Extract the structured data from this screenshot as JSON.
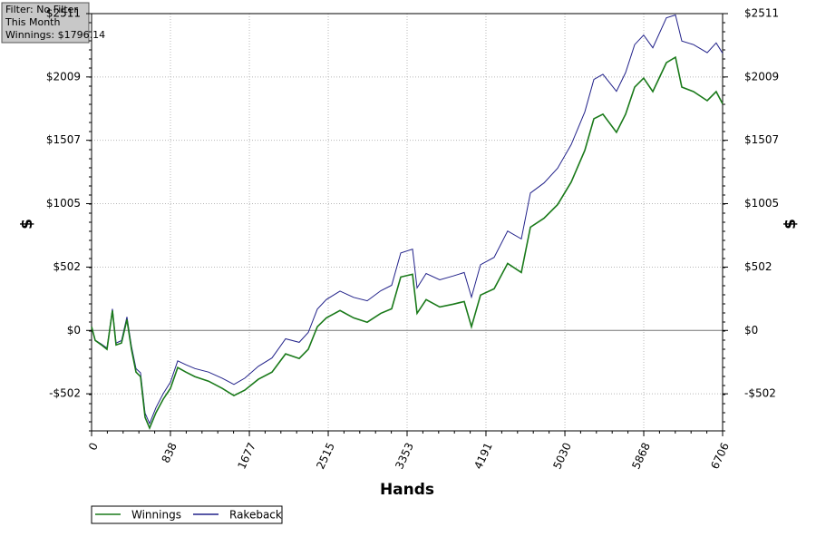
{
  "chart_data": {
    "type": "line",
    "annotations": [
      "Filter: No Filter",
      "This Month",
      "Winnings: $1796.14"
    ],
    "x_label": "Hands",
    "y_label": "$",
    "y2_label": "$",
    "x": [
      0,
      39,
      106,
      164,
      222,
      260,
      318,
      376,
      424,
      472,
      520,
      568,
      617,
      684,
      761,
      838,
      915,
      1002,
      1098,
      1243,
      1387,
      1513,
      1628,
      1773,
      1917,
      2062,
      2206,
      2303,
      2399,
      2495,
      2640,
      2785,
      2929,
      3074,
      3189,
      3286,
      3411,
      3459,
      3555,
      3700,
      3844,
      3960,
      4037,
      4133,
      4278,
      4422,
      4567,
      4663,
      4808,
      4952,
      5097,
      5241,
      5338,
      5434,
      5578,
      5675,
      5771,
      5867,
      5964,
      6109,
      6205,
      6272,
      6397,
      6542,
      6638,
      6706
    ],
    "series": [
      {
        "name": "Winnings",
        "color": "#1a7a1a",
        "values": [
          29,
          -79,
          -115,
          -150,
          158,
          -115,
          -100,
          86,
          -150,
          -330,
          -366,
          -688,
          -774,
          -652,
          -545,
          -459,
          -294,
          -330,
          -366,
          -402,
          -459,
          -516,
          -473,
          -387,
          -330,
          -186,
          -222,
          -150,
          29,
          100,
          158,
          100,
          65,
          136,
          172,
          423,
          445,
          136,
          244,
          186,
          208,
          229,
          29,
          280,
          330,
          531,
          459,
          818,
          889,
          997,
          1176,
          1427,
          1678,
          1714,
          1570,
          1714,
          1929,
          2000,
          1893,
          2122,
          2165,
          1929,
          1893,
          1821,
          1893,
          1796
        ]
      },
      {
        "name": "Rakeback",
        "color": "#22228a",
        "values": [
          29,
          -77,
          -109,
          -140,
          171,
          -100,
          -81,
          108,
          -125,
          -303,
          -336,
          -655,
          -738,
          -612,
          -501,
          -410,
          -241,
          -272,
          -302,
          -330,
          -378,
          -428,
          -378,
          -284,
          -218,
          -66,
          -94,
          -16,
          169,
          245,
          312,
          262,
          235,
          315,
          358,
          614,
          644,
          337,
          451,
          401,
          432,
          459,
          264,
          521,
          579,
          788,
          725,
          1089,
          1169,
          1285,
          1473,
          1732,
          1989,
          2030,
          1895,
          2044,
          2265,
          2341,
          2240,
          2477,
          2500,
          2294,
          2265,
          2201,
          2279,
          2197
        ]
      }
    ],
    "xlim": [
      0,
      6706
    ],
    "xticks": [
      0,
      838,
      1677,
      2515,
      3353,
      4191,
      5030,
      5868,
      6706
    ],
    "ylim": [
      -796,
      2511
    ],
    "yticks": [
      {
        "value": -502,
        "label": "-$502"
      },
      {
        "value": 0,
        "label": "$0"
      },
      {
        "value": 502,
        "label": "$502"
      },
      {
        "value": 1005,
        "label": "$1005"
      },
      {
        "value": 1507,
        "label": "$1507"
      },
      {
        "value": 2009,
        "label": "$2009"
      },
      {
        "value": 2511,
        "label": "$2511"
      }
    ],
    "y2lim": [
      -796,
      2511
    ],
    "y2ticks": [
      {
        "value": -502,
        "label": "-$502"
      },
      {
        "value": 0,
        "label": "$0"
      },
      {
        "value": 502,
        "label": "$502"
      },
      {
        "value": 1005,
        "label": "$1005"
      },
      {
        "value": 1507,
        "label": "$1507"
      },
      {
        "value": 2009,
        "label": "$2009"
      },
      {
        "value": 2511,
        "label": "$2511"
      }
    ],
    "grid": true
  }
}
